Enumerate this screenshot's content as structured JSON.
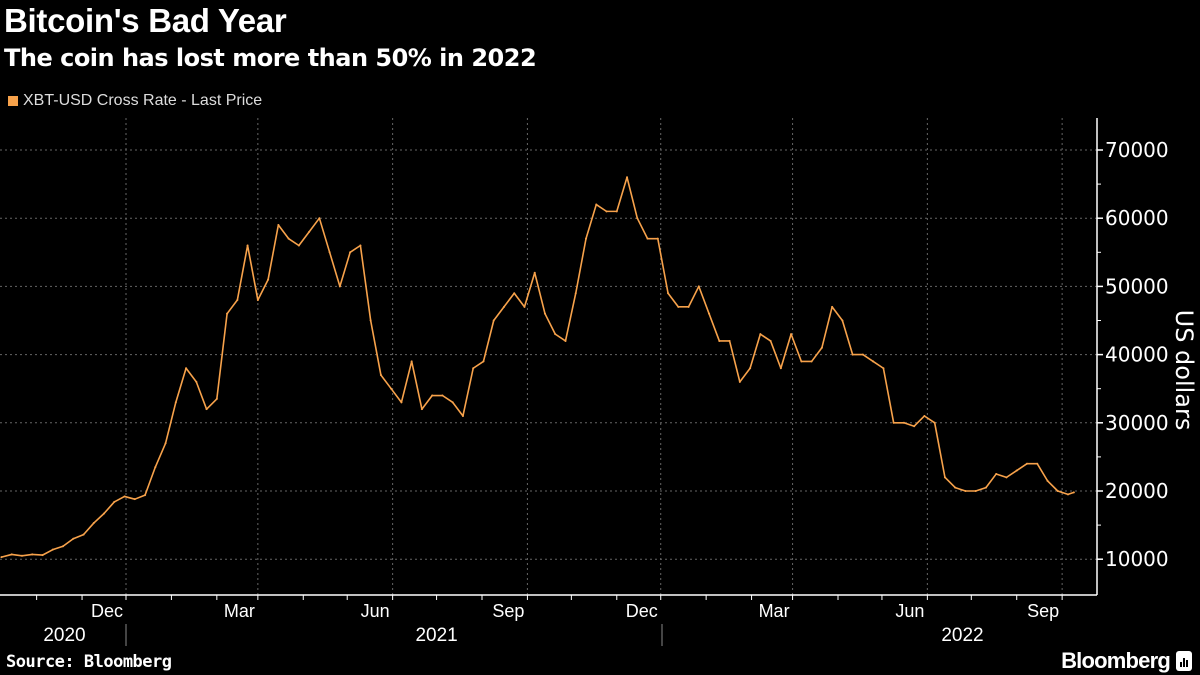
{
  "header": {
    "title": "Bitcoin's Bad Year",
    "subtitle": "The coin has lost more than 50% in 2022"
  },
  "footer": {
    "source": "Source: Bloomberg",
    "brand": "Bloomberg"
  },
  "colors": {
    "series": "#F7A24B",
    "grid": "#666666",
    "axis": "#FFFFFF"
  },
  "chart_data": {
    "type": "line",
    "title": "Bitcoin's Bad Year",
    "subtitle": "The coin has lost more than 50% in 2022",
    "legend": [
      "XBT-USD Cross Rate - Last Price"
    ],
    "legend_position": "top-left",
    "ylabel": "US dollars",
    "xlabel": "",
    "ylim": [
      5000,
      75000
    ],
    "yticks": [
      10000,
      20000,
      30000,
      40000,
      50000,
      60000,
      70000
    ],
    "ytick_labels": [
      "10000",
      "20000",
      "30000",
      "40000",
      "50000",
      "60000",
      "70000"
    ],
    "grid": true,
    "month_ticks": [
      {
        "label": "Dec",
        "date": "2020-12-01"
      },
      {
        "label": "Mar",
        "date": "2021-03-01"
      },
      {
        "label": "Jun",
        "date": "2021-06-01"
      },
      {
        "label": "Sep",
        "date": "2021-09-01"
      },
      {
        "label": "Dec",
        "date": "2021-12-01"
      },
      {
        "label": "Mar",
        "date": "2022-03-01"
      },
      {
        "label": "Jun",
        "date": "2022-06-01"
      },
      {
        "label": "Sep",
        "date": "2022-09-01"
      }
    ],
    "year_labels": [
      {
        "label": "2020",
        "date": "2020-10-20"
      },
      {
        "label": "2021",
        "date": "2021-07-01"
      },
      {
        "label": "2022",
        "date": "2022-06-25"
      }
    ],
    "year_separators": [
      "2021-01-01",
      "2022-01-01"
    ],
    "series": [
      {
        "name": "XBT-USD Cross Rate - Last Price",
        "x": [
          "2020-09-07",
          "2020-09-14",
          "2020-09-21",
          "2020-09-28",
          "2020-10-05",
          "2020-10-12",
          "2020-10-19",
          "2020-10-26",
          "2020-11-02",
          "2020-11-09",
          "2020-11-16",
          "2020-11-23",
          "2020-11-30",
          "2020-12-07",
          "2020-12-14",
          "2020-12-21",
          "2020-12-28",
          "2021-01-04",
          "2021-01-11",
          "2021-01-18",
          "2021-01-25",
          "2021-02-01",
          "2021-02-08",
          "2021-02-15",
          "2021-02-22",
          "2021-03-01",
          "2021-03-08",
          "2021-03-15",
          "2021-03-22",
          "2021-03-29",
          "2021-04-05",
          "2021-04-12",
          "2021-04-19",
          "2021-04-26",
          "2021-05-03",
          "2021-05-10",
          "2021-05-17",
          "2021-05-24",
          "2021-05-31",
          "2021-06-07",
          "2021-06-14",
          "2021-06-21",
          "2021-06-28",
          "2021-07-05",
          "2021-07-12",
          "2021-07-19",
          "2021-07-26",
          "2021-08-02",
          "2021-08-09",
          "2021-08-16",
          "2021-08-23",
          "2021-08-30",
          "2021-09-06",
          "2021-09-13",
          "2021-09-20",
          "2021-09-27",
          "2021-10-04",
          "2021-10-11",
          "2021-10-18",
          "2021-10-25",
          "2021-11-01",
          "2021-11-08",
          "2021-11-15",
          "2021-11-22",
          "2021-11-29",
          "2021-12-06",
          "2021-12-13",
          "2021-12-20",
          "2021-12-27",
          "2022-01-03",
          "2022-01-10",
          "2022-01-17",
          "2022-01-24",
          "2022-01-31",
          "2022-02-07",
          "2022-02-14",
          "2022-02-21",
          "2022-02-28",
          "2022-03-07",
          "2022-03-14",
          "2022-03-21",
          "2022-03-28",
          "2022-04-04",
          "2022-04-11",
          "2022-04-18",
          "2022-04-25",
          "2022-05-02",
          "2022-05-09",
          "2022-05-16",
          "2022-05-23",
          "2022-05-30",
          "2022-06-06",
          "2022-06-13",
          "2022-06-20",
          "2022-06-27",
          "2022-07-04",
          "2022-07-11",
          "2022-07-18",
          "2022-07-25",
          "2022-08-01",
          "2022-08-08",
          "2022-08-15",
          "2022-08-22",
          "2022-08-29",
          "2022-09-05",
          "2022-09-09"
        ],
        "values": [
          10300,
          10700,
          10500,
          10700,
          10600,
          11400,
          11900,
          13000,
          13600,
          15300,
          16700,
          18400,
          19200,
          18800,
          19400,
          23500,
          27000,
          33000,
          38000,
          36000,
          32000,
          33500,
          46000,
          48000,
          56000,
          48000,
          51000,
          59000,
          57000,
          56000,
          58000,
          60000,
          55000,
          50000,
          55000,
          56000,
          45000,
          37000,
          35000,
          33000,
          39000,
          32000,
          34000,
          34000,
          33000,
          31000,
          38000,
          39000,
          45000,
          47000,
          49000,
          47000,
          52000,
          46000,
          43000,
          42000,
          49000,
          57000,
          62000,
          61000,
          61000,
          66000,
          60000,
          57000,
          57000,
          49000,
          47000,
          47000,
          50000,
          46000,
          42000,
          42000,
          36000,
          38000,
          43000,
          42000,
          38000,
          43000,
          39000,
          39000,
          41000,
          47000,
          45000,
          40000,
          40000,
          39000,
          38000,
          30000,
          30000,
          29500,
          31000,
          30000,
          22000,
          20500,
          20000,
          20000,
          20500,
          22500,
          22000,
          23000,
          24000,
          24000,
          21500,
          20000,
          19500,
          19800
        ]
      }
    ]
  }
}
